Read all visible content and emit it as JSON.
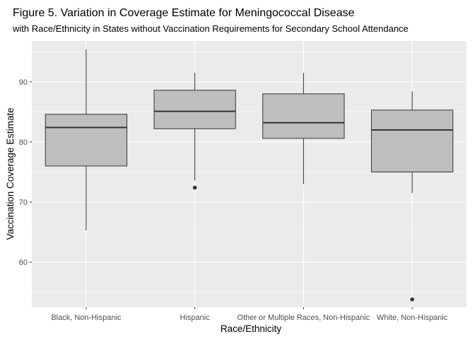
{
  "chart_data": {
    "type": "box",
    "title": "Figure 5. Variation in Coverage Estimate for Meningococcal Disease",
    "subtitle": "with Race/Ethnicity in States without Vaccination Requirements for Secondary School Attendance",
    "xlabel": "Race/Ethnicity",
    "ylabel": "Vaccination Coverage Estimate",
    "ylim": [
      52.5,
      96.8
    ],
    "yticks": [
      60,
      70,
      80,
      90
    ],
    "grid": true,
    "categories": [
      "Black, Non-Hispanic",
      "Hispanic",
      "Other or Multiple Races, Non-Hispanic",
      "White, Non-Hispanic"
    ],
    "boxes": [
      {
        "whisker_low": 65.3,
        "q1": 76.0,
        "median": 82.4,
        "q3": 84.6,
        "whisker_high": 95.4,
        "outliers": []
      },
      {
        "whisker_low": 73.6,
        "q1": 82.2,
        "median": 85.1,
        "q3": 88.6,
        "whisker_high": 91.5,
        "outliers": [
          72.4
        ]
      },
      {
        "whisker_low": 73.0,
        "q1": 80.6,
        "median": 83.2,
        "q3": 88.0,
        "whisker_high": 91.5,
        "outliers": []
      },
      {
        "whisker_low": 71.5,
        "q1": 75.0,
        "median": 82.0,
        "q3": 85.3,
        "whisker_high": 88.4,
        "outliers": [
          53.8
        ]
      }
    ],
    "colors": {
      "panel": "#ebebeb",
      "grid": "#ffffff",
      "box_fill": "#bebebe",
      "box_stroke": "#333333",
      "outlier": "#333333"
    }
  }
}
